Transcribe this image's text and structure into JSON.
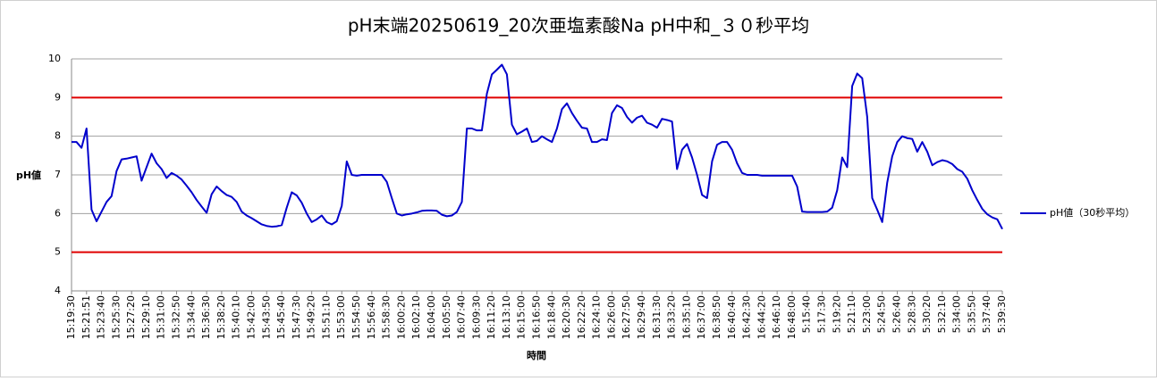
{
  "chart_data": {
    "type": "line",
    "title": "pH末端20250619_20次亜塩素酸Na pH中和_３０秒平均",
    "y_label": "pH値",
    "x_label": "時間",
    "categories": [
      "15:19:30",
      null,
      null,
      "15:21:51",
      null,
      null,
      "15:23:40",
      null,
      null,
      "15:25:30",
      null,
      null,
      "15:27:20",
      null,
      null,
      "15:29:10",
      null,
      null,
      "15:31:00",
      null,
      null,
      "15:32:50",
      null,
      null,
      "15:34:40",
      null,
      null,
      "15:36:30",
      null,
      null,
      "15:38:20",
      null,
      null,
      "15:40:10",
      null,
      null,
      "15:42:00",
      null,
      null,
      "15:43:50",
      null,
      null,
      "15:45:40",
      null,
      null,
      "15:47:30",
      null,
      null,
      "15:49:20",
      null,
      null,
      "15:51:10",
      null,
      null,
      "15:53:00",
      null,
      null,
      "15:54:50",
      null,
      null,
      "15:56:40",
      null,
      null,
      "15:58:30",
      null,
      null,
      "16:00:20",
      null,
      null,
      "16:02:10",
      null,
      null,
      "16:04:00",
      null,
      null,
      "16:05:50",
      null,
      null,
      "16:07:40",
      null,
      null,
      "16:09:30",
      null,
      null,
      "16:11:20",
      null,
      null,
      "16:13:10",
      null,
      null,
      "16:15:00",
      null,
      null,
      "16:16:50",
      null,
      null,
      "16:18:40",
      null,
      null,
      "16:20:30",
      null,
      null,
      "16:22:20",
      null,
      null,
      "16:24:10",
      null,
      null,
      "16:26:00",
      null,
      null,
      "16:27:50",
      null,
      null,
      "16:29:40",
      null,
      null,
      "16:31:30",
      null,
      null,
      "16:33:20",
      null,
      null,
      "16:35:10",
      null,
      null,
      "16:37:00",
      null,
      null,
      "16:38:50",
      null,
      null,
      "16:40:40",
      null,
      null,
      "16:42:30",
      null,
      null,
      "16:44:20",
      null,
      null,
      "16:46:10",
      null,
      null,
      "16:48:00",
      null,
      null,
      "5:15:40",
      null,
      null,
      "5:17:30",
      null,
      null,
      "5:19:20",
      null,
      null,
      "5:21:10",
      null,
      null,
      "5:23:00",
      null,
      null,
      "5:24:50",
      null,
      null,
      "5:26:40",
      null,
      null,
      "5:28:30",
      null,
      null,
      "5:30:20",
      null,
      null,
      "5:32:10",
      null,
      null,
      "5:34:00",
      null,
      null,
      "5:35:50",
      null,
      null,
      "5:37:40",
      null,
      null,
      "5:39:30"
    ],
    "series": [
      {
        "name": "pH値（30秒平均）",
        "color": "#0000cc",
        "values": [
          7.85,
          7.85,
          7.7,
          8.2,
          6.1,
          5.8,
          6.05,
          6.3,
          6.45,
          7.1,
          7.4,
          7.42,
          7.45,
          7.48,
          6.85,
          7.2,
          7.55,
          7.3,
          7.15,
          6.92,
          7.05,
          6.98,
          6.88,
          6.72,
          6.55,
          6.35,
          6.18,
          6.02,
          6.5,
          6.7,
          6.58,
          6.48,
          6.43,
          6.3,
          6.05,
          5.95,
          5.88,
          5.8,
          5.72,
          5.68,
          5.66,
          5.67,
          5.7,
          6.15,
          6.55,
          6.47,
          6.28,
          6.0,
          5.78,
          5.85,
          5.95,
          5.78,
          5.72,
          5.8,
          6.2,
          7.35,
          7.0,
          6.98,
          7.0,
          7.0,
          7.0,
          7.0,
          7.0,
          6.82,
          6.4,
          6.0,
          5.95,
          5.98,
          6.0,
          6.03,
          6.07,
          6.08,
          6.08,
          6.07,
          5.97,
          5.93,
          5.95,
          6.04,
          6.3,
          8.2,
          8.2,
          8.15,
          8.15,
          9.1,
          9.6,
          9.72,
          9.85,
          9.6,
          8.3,
          8.05,
          8.12,
          8.2,
          7.85,
          7.88,
          8.0,
          7.92,
          7.85,
          8.2,
          8.7,
          8.85,
          8.6,
          8.4,
          8.22,
          8.2,
          7.85,
          7.85,
          7.92,
          7.9,
          8.6,
          8.8,
          8.73,
          8.5,
          8.35,
          8.48,
          8.53,
          8.35,
          8.3,
          8.22,
          8.45,
          8.42,
          8.38,
          7.15,
          7.65,
          7.8,
          7.45,
          7.0,
          6.48,
          6.4,
          7.35,
          7.78,
          7.85,
          7.85,
          7.65,
          7.3,
          7.05,
          7.0,
          7.0,
          7.0,
          6.98,
          6.98,
          6.98,
          6.98,
          6.98,
          6.98,
          6.98,
          6.7,
          6.05,
          6.04,
          6.04,
          6.04,
          6.04,
          6.05,
          6.15,
          6.6,
          7.45,
          7.2,
          9.3,
          9.62,
          9.5,
          8.5,
          6.4,
          6.1,
          5.78,
          6.8,
          7.48,
          7.85,
          8.0,
          7.95,
          7.93,
          7.6,
          7.85,
          7.6,
          7.25,
          7.33,
          7.38,
          7.35,
          7.28,
          7.15,
          7.08,
          6.9,
          6.6,
          6.35,
          6.12,
          5.98,
          5.9,
          5.85,
          5.6
        ]
      }
    ],
    "ylim": [
      4,
      10
    ],
    "yticks": [
      4,
      5,
      6,
      7,
      8,
      9,
      10
    ],
    "grid": true,
    "hlines": [
      9,
      5
    ],
    "hline_color": "#e00000",
    "legend": "right"
  }
}
